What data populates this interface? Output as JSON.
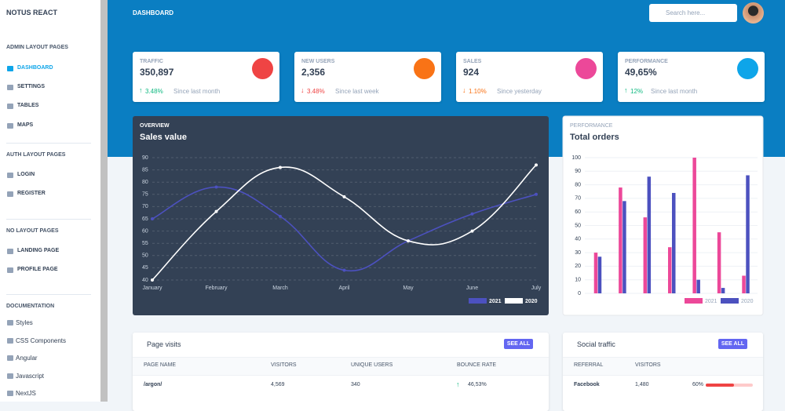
{
  "sidebar": {
    "brand": "NOTUS REACT",
    "sections": [
      {
        "title": "ADMIN LAYOUT PAGES",
        "items": [
          "DASHBOARD",
          "SETTINGS",
          "TABLES",
          "MAPS"
        ]
      },
      {
        "title": "AUTH LAYOUT PAGES",
        "items": [
          "LOGIN",
          "REGISTER"
        ]
      },
      {
        "title": "NO LAYOUT PAGES",
        "items": [
          "LANDING PAGE",
          "PROFILE PAGE"
        ]
      },
      {
        "title": "DOCUMENTATION",
        "items": [
          "Styles",
          "CSS Components",
          "Angular",
          "Javascript",
          "NextJS"
        ]
      }
    ]
  },
  "header": {
    "title": "DASHBOARD",
    "search_placeholder": "Search here..."
  },
  "stats": [
    {
      "title": "TRAFFIC",
      "value": "350,897",
      "change": "3.48%",
      "since": "Since last month"
    },
    {
      "title": "NEW USERS",
      "value": "2,356",
      "change": "3.48%",
      "since": "Since last week"
    },
    {
      "title": "SALES",
      "value": "924",
      "change": "1.10%",
      "since": "Since yesterday"
    },
    {
      "title": "PERFORMANCE",
      "value": "49,65%",
      "change": "12%",
      "since": "Since last month"
    }
  ],
  "chart_data": [
    {
      "type": "line",
      "subtitle": "OVERVIEW",
      "title": "Sales value",
      "categories": [
        "January",
        "February",
        "March",
        "April",
        "May",
        "June",
        "July"
      ],
      "series": [
        {
          "name": "2021",
          "color": "#4c51bf",
          "values": [
            65,
            78,
            66,
            44,
            56,
            67,
            75
          ]
        },
        {
          "name": "2020",
          "color": "#ffffff",
          "values": [
            40,
            68,
            86,
            74,
            56,
            60,
            87
          ]
        }
      ],
      "ylim": [
        40,
        90
      ],
      "yticks": [
        40,
        45,
        50,
        55,
        60,
        65,
        70,
        75,
        80,
        85,
        90
      ],
      "grid": true,
      "legend": "bottom-right"
    },
    {
      "type": "bar",
      "subtitle": "PERFORMANCE",
      "title": "Total orders",
      "categories": [
        null,
        null,
        null,
        null,
        null,
        null,
        null
      ],
      "series": [
        {
          "name": "2021",
          "color": "#ec4899",
          "values": [
            30,
            78,
            56,
            34,
            100,
            45,
            13
          ]
        },
        {
          "name": "2020",
          "color": "#4c51bf",
          "values": [
            27,
            68,
            86,
            74,
            10,
            4,
            87
          ]
        }
      ],
      "ylim": [
        0,
        100
      ],
      "yticks": [
        0,
        10,
        20,
        30,
        40,
        50,
        60,
        70,
        80,
        90,
        100
      ],
      "grid": true,
      "legend": "bottom"
    }
  ],
  "page_visits": {
    "title": "Page visits",
    "button": "SEE ALL",
    "columns": [
      "PAGE NAME",
      "VISITORS",
      "UNIQUE USERS",
      "BOUNCE RATE"
    ],
    "rows": [
      [
        "/argon/",
        "4,569",
        "340",
        "46,53%"
      ]
    ]
  },
  "social_traffic": {
    "title": "Social traffic",
    "button": "SEE ALL",
    "columns": [
      "REFERRAL",
      "VISITORS"
    ],
    "rows": [
      [
        "Facebook",
        "1,480",
        {
          "value": 60,
          "label": "60%"
        }
      ]
    ]
  }
}
